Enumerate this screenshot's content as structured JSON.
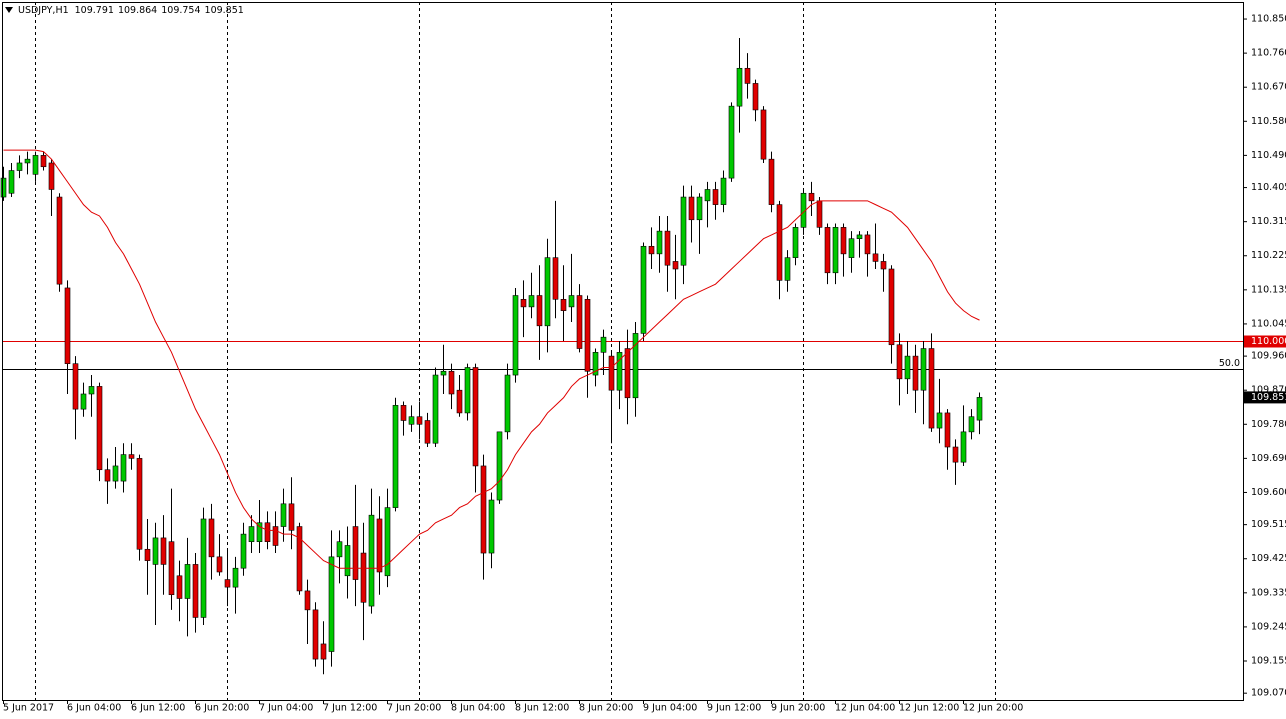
{
  "chart_data": {
    "type": "candlestick",
    "title": "USDJPY,H1",
    "categories": [
      "5 Jun 2017",
      null,
      null,
      null,
      null,
      null,
      null,
      null,
      "6 Jun 04:00",
      null,
      null,
      null,
      null,
      null,
      null,
      null,
      "6 Jun 12:00",
      null,
      null,
      null,
      null,
      null,
      null,
      null,
      "6 Jun 20:00",
      null,
      null,
      null,
      null,
      null,
      null,
      null,
      "7 Jun 04:00",
      null,
      null,
      null,
      null,
      null,
      null,
      null,
      "7 Jun 12:00",
      null,
      null,
      null,
      null,
      null,
      null,
      null,
      "7 Jun 20:00",
      null,
      null,
      null,
      null,
      null,
      null,
      null,
      "8 Jun 04:00",
      null,
      null,
      null,
      null,
      null,
      null,
      null,
      "8 Jun 12:00",
      null,
      null,
      null,
      null,
      null,
      null,
      null,
      "8 Jun 20:00",
      null,
      null,
      null,
      null,
      null,
      null,
      null,
      "9 Jun 04:00",
      null,
      null,
      null,
      null,
      null,
      null,
      null,
      "9 Jun 12:00",
      null,
      null,
      null,
      null,
      null,
      null,
      null,
      "9 Jun 20:00",
      null,
      null,
      null,
      null,
      null,
      null,
      null,
      "12 Jun 04:00",
      null,
      null,
      null,
      null,
      null,
      null,
      null,
      "12 Jun 12:00",
      null,
      null,
      null,
      null,
      null,
      null,
      null,
      "12 Jun 20:00",
      null,
      null
    ],
    "open": [
      110.38,
      110.39,
      110.45,
      110.47,
      110.44,
      110.49,
      110.47,
      110.38,
      110.14,
      109.94,
      109.82,
      109.86,
      109.88,
      109.66,
      109.63,
      109.63,
      109.7,
      109.69,
      109.45,
      109.41,
      109.48,
      109.47,
      109.38,
      109.32,
      109.41,
      109.27,
      109.53,
      109.43,
      109.37,
      109.35,
      109.4,
      109.47,
      109.47,
      109.52,
      109.51,
      109.51,
      109.57,
      109.51,
      109.34,
      109.29,
      109.2,
      109.18,
      109.43,
      109.38,
      109.51,
      109.44,
      109.3,
      109.53,
      109.38,
      109.56,
      109.83,
      109.78,
      109.8,
      109.79,
      109.73,
      109.91,
      109.92,
      109.87,
      109.81,
      109.93,
      109.67,
      109.44,
      109.58,
      109.76,
      109.91,
      110.11,
      110.09,
      110.12,
      110.04,
      110.22,
      110.11,
      110.09,
      110.12,
      110.11,
      109.91,
      109.97,
      109.96,
      109.87,
      109.98,
      109.85,
      110.02,
      110.25,
      110.23,
      110.29,
      110.21,
      110.2,
      110.38,
      110.32,
      110.37,
      110.4,
      110.36,
      110.43,
      110.62,
      110.72,
      110.68,
      110.61,
      110.48,
      110.36,
      110.16,
      110.22,
      110.3,
      110.39,
      110.37,
      110.3,
      110.18,
      110.3,
      110.22,
      110.27,
      110.28,
      110.23,
      110.21,
      110.19,
      109.99,
      109.9,
      109.96,
      109.87,
      109.98,
      109.77,
      109.81,
      109.72,
      109.68,
      109.76,
      109.791
    ],
    "high": [
      110.46,
      110.47,
      110.49,
      110.5,
      110.5,
      110.5,
      110.48,
      110.39,
      110.16,
      109.96,
      109.89,
      109.91,
      109.89,
      109.69,
      109.72,
      109.73,
      109.73,
      109.7,
      109.53,
      109.52,
      109.54,
      109.61,
      109.42,
      109.48,
      109.44,
      109.56,
      109.57,
      109.49,
      109.45,
      109.43,
      109.52,
      109.54,
      109.58,
      109.55,
      109.55,
      109.61,
      109.64,
      109.52,
      109.37,
      109.31,
      109.26,
      109.5,
      109.5,
      109.51,
      109.62,
      109.52,
      109.61,
      109.59,
      109.61,
      109.85,
      109.84,
      109.83,
      109.84,
      109.81,
      109.93,
      109.99,
      109.94,
      109.91,
      109.94,
      109.94,
      109.7,
      109.6,
      109.76,
      109.94,
      110.14,
      110.16,
      110.18,
      110.2,
      110.27,
      110.37,
      110.2,
      110.23,
      110.15,
      110.12,
      109.98,
      110.03,
      109.97,
      110.0,
      110.03,
      110.05,
      110.26,
      110.3,
      110.33,
      110.33,
      110.28,
      110.41,
      110.41,
      110.39,
      110.42,
      110.42,
      110.45,
      110.63,
      110.8,
      110.76,
      110.69,
      110.62,
      110.5,
      110.37,
      110.24,
      110.31,
      110.4,
      110.42,
      110.38,
      110.31,
      110.31,
      110.31,
      110.29,
      110.29,
      110.29,
      110.31,
      110.23,
      110.2,
      110.02,
      110.0,
      109.99,
      110.0,
      110.02,
      109.9,
      109.82,
      109.74,
      109.83,
      109.82,
      109.864
    ],
    "low": [
      110.37,
      110.38,
      110.43,
      110.44,
      110.42,
      110.45,
      110.33,
      110.13,
      109.86,
      109.74,
      109.8,
      109.8,
      109.63,
      109.57,
      109.61,
      109.6,
      109.66,
      109.42,
      109.33,
      109.25,
      109.33,
      109.29,
      109.26,
      109.22,
      109.23,
      109.25,
      109.37,
      109.38,
      109.3,
      109.28,
      109.38,
      109.44,
      109.44,
      109.45,
      109.44,
      109.47,
      109.45,
      109.33,
      109.2,
      109.14,
      109.12,
      109.14,
      109.36,
      109.32,
      109.3,
      109.21,
      109.28,
      109.33,
      109.35,
      109.55,
      109.75,
      109.76,
      109.74,
      109.72,
      109.72,
      109.86,
      109.82,
      109.8,
      109.79,
      109.6,
      109.37,
      109.4,
      109.57,
      109.74,
      109.89,
      110.01,
      110.06,
      109.95,
      109.97,
      110.06,
      110.0,
      110.05,
      109.97,
      109.85,
      109.88,
      109.91,
      109.73,
      109.82,
      109.78,
      109.8,
      110.0,
      110.19,
      110.18,
      110.13,
      110.11,
      110.15,
      110.26,
      110.23,
      110.3,
      110.32,
      110.34,
      110.42,
      110.55,
      110.64,
      110.58,
      110.47,
      110.34,
      110.11,
      110.13,
      110.2,
      110.28,
      110.33,
      110.28,
      110.15,
      110.15,
      110.17,
      110.18,
      110.22,
      110.17,
      110.19,
      110.13,
      109.94,
      109.83,
      109.86,
      109.81,
      109.78,
      109.76,
      109.73,
      109.66,
      109.62,
      109.67,
      109.74,
      109.754
    ],
    "close": [
      110.43,
      110.45,
      110.47,
      110.48,
      110.49,
      110.46,
      110.4,
      110.15,
      109.94,
      109.82,
      109.86,
      109.88,
      109.66,
      109.63,
      109.67,
      109.7,
      109.69,
      109.45,
      109.42,
      109.48,
      109.41,
      109.33,
      109.32,
      109.41,
      109.27,
      109.53,
      109.43,
      109.39,
      109.35,
      109.4,
      109.49,
      109.51,
      109.52,
      109.47,
      109.46,
      109.57,
      109.5,
      109.34,
      109.29,
      109.16,
      109.16,
      109.43,
      109.47,
      109.46,
      109.37,
      109.31,
      109.54,
      109.39,
      109.56,
      109.83,
      109.79,
      109.8,
      109.78,
      109.73,
      109.91,
      109.92,
      109.86,
      109.81,
      109.93,
      109.67,
      109.44,
      109.58,
      109.76,
      109.91,
      110.12,
      110.09,
      110.12,
      110.04,
      110.22,
      110.11,
      110.08,
      110.12,
      109.98,
      109.92,
      109.97,
      110.01,
      109.87,
      109.97,
      109.85,
      110.02,
      110.25,
      110.23,
      110.29,
      110.2,
      110.19,
      110.38,
      110.32,
      110.38,
      110.4,
      110.36,
      110.43,
      110.62,
      110.72,
      110.68,
      110.61,
      110.48,
      110.36,
      110.16,
      110.22,
      110.3,
      110.39,
      110.37,
      110.3,
      110.18,
      110.3,
      110.23,
      110.27,
      110.28,
      110.23,
      110.21,
      110.19,
      109.99,
      109.9,
      109.96,
      109.87,
      109.98,
      109.77,
      109.81,
      109.72,
      109.68,
      109.76,
      109.8,
      109.851
    ],
    "up_color": "#00c800",
    "down_color": "#e00000",
    "ma": {
      "color": "#e00000",
      "values": [
        110.504,
        110.504,
        110.504,
        110.504,
        110.504,
        110.5,
        110.48,
        110.45,
        110.42,
        110.39,
        110.36,
        110.34,
        110.33,
        110.3,
        110.26,
        110.23,
        110.19,
        110.15,
        110.1,
        110.05,
        110.01,
        109.97,
        109.92,
        109.87,
        109.82,
        109.78,
        109.74,
        109.7,
        109.65,
        109.6,
        109.56,
        109.53,
        109.51,
        109.5,
        109.5,
        109.49,
        109.49,
        109.48,
        109.46,
        109.44,
        109.42,
        109.41,
        109.4,
        109.4,
        109.4,
        109.4,
        109.4,
        109.4,
        109.41,
        109.43,
        109.45,
        109.47,
        109.49,
        109.5,
        109.52,
        109.53,
        109.54,
        109.56,
        109.57,
        109.59,
        109.6,
        109.61,
        109.63,
        109.66,
        109.7,
        109.73,
        109.76,
        109.78,
        109.81,
        109.83,
        109.85,
        109.88,
        109.9,
        109.91,
        109.92,
        109.93,
        109.93,
        109.95,
        109.97,
        109.99,
        110.01,
        110.03,
        110.05,
        110.07,
        110.09,
        110.11,
        110.12,
        110.13,
        110.14,
        110.15,
        110.17,
        110.19,
        110.21,
        110.23,
        110.25,
        110.27,
        110.28,
        110.29,
        110.3,
        110.32,
        110.34,
        110.36,
        110.37,
        110.37,
        110.37,
        110.37,
        110.37,
        110.37,
        110.37,
        110.36,
        110.35,
        110.34,
        110.32,
        110.3,
        110.27,
        110.24,
        110.21,
        110.17,
        110.13,
        110.1,
        110.08,
        110.065,
        110.055
      ]
    },
    "hlines": [
      {
        "value": 110.0,
        "label": "110.000",
        "color": "#e00000"
      },
      {
        "price": 109.926,
        "level": {
          "value": 50,
          "label": "50.0"
        },
        "color": "#000000"
      }
    ],
    "ylim": [
      109.052,
      110.895
    ],
    "yticks": [
      {
        "value": 110.85,
        "label": "110.850"
      },
      {
        "value": 110.76,
        "label": "110.760"
      },
      {
        "value": 110.67,
        "label": "110.670"
      },
      {
        "value": 110.58,
        "label": "110.580"
      },
      {
        "value": 110.49,
        "label": "110.490"
      },
      110.405,
      110.315,
      110.225,
      110.135,
      110.045,
      {
        "value": 109.96,
        "label": "109.960"
      },
      {
        "value": 109.87,
        "label": "109.870"
      },
      {
        "value": 109.78,
        "label": "109.780"
      },
      {
        "value": 109.69,
        "label": "109.690"
      },
      {
        "value": 109.6,
        "label": "109.600"
      },
      109.515,
      109.425,
      109.335,
      109.245,
      109.155,
      {
        "value": 109.07,
        "label": "109.070"
      }
    ]
  }
}
